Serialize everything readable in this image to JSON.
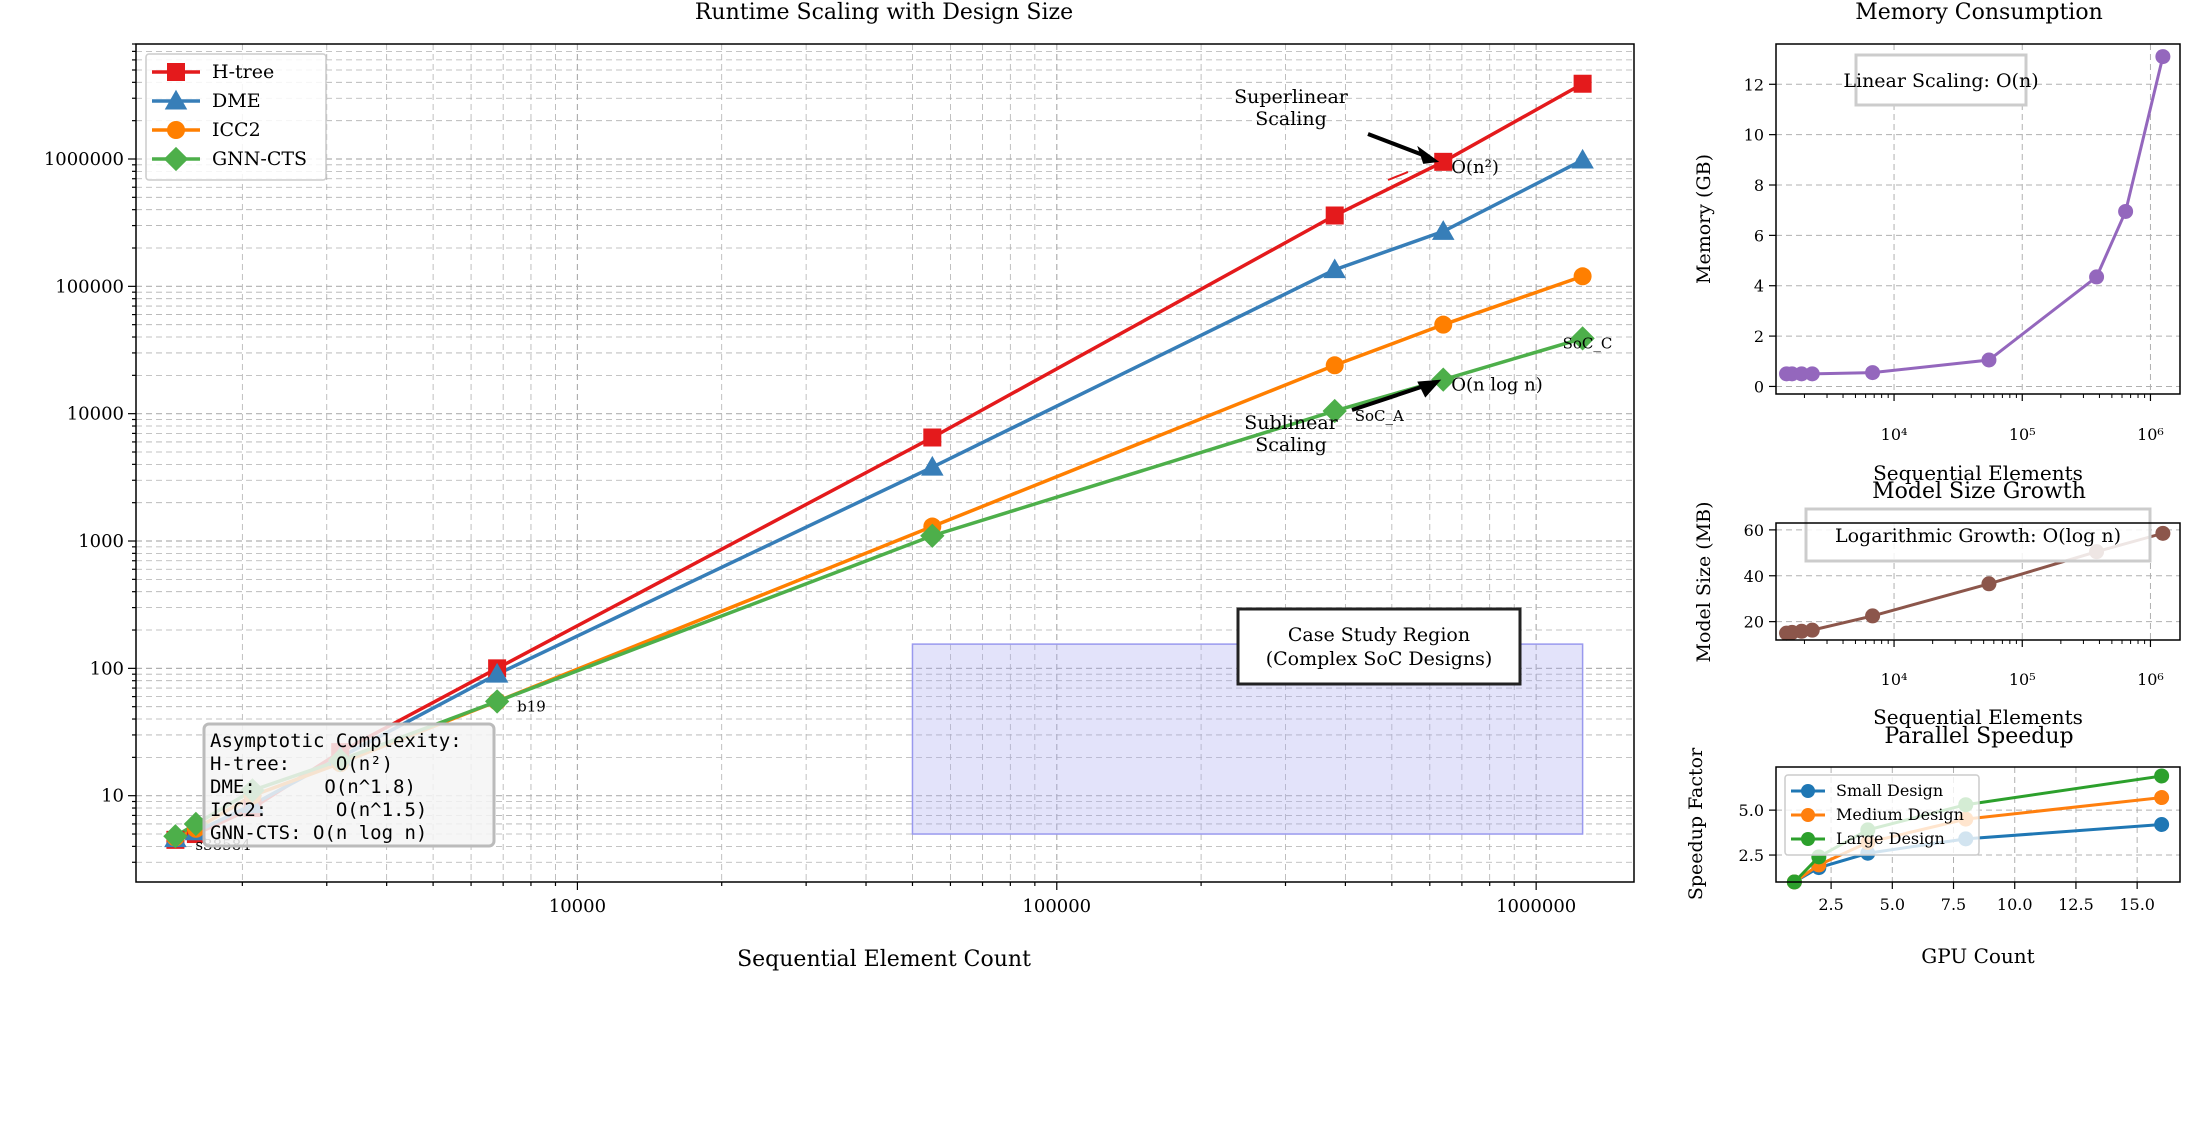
{
  "chart_data": [
    {
      "type": "line",
      "title": "Runtime Scaling with Design Size",
      "xlabel": "Sequential Element Count",
      "ylabel": "",
      "xscale": "log",
      "yscale": "log",
      "xlim": [
        1200,
        1600000
      ],
      "ylim": [
        2.1,
        8000000
      ],
      "grid": true,
      "legend_position": "top-left",
      "x_tick_labels": [
        "10000",
        "100000",
        "1000000"
      ],
      "y_tick_labels": [
        "10",
        "100",
        "1000",
        "10000",
        "100000",
        "1000000"
      ],
      "series": [
        {
          "name": "H-tree",
          "color": "#e41a1c",
          "marker": "square",
          "x": [
            1450,
            1600,
            2100,
            3200,
            6800,
            55000,
            380000,
            640000,
            1250000
          ],
          "y": [
            4.5,
            5,
            8,
            22,
            100,
            6500,
            360000,
            950000,
            3900000
          ]
        },
        {
          "name": "DME",
          "color": "#377eb8",
          "marker": "triangle",
          "x": [
            1450,
            1600,
            2100,
            3200,
            6800,
            55000,
            380000,
            640000,
            1250000
          ],
          "y": [
            4.6,
            5.2,
            8.5,
            20,
            90,
            3800,
            135000,
            270000,
            980000
          ]
        },
        {
          "name": "ICC2",
          "color": "#ff7f00",
          "marker": "circle",
          "x": [
            1450,
            1600,
            2100,
            3200,
            6800,
            55000,
            380000,
            640000,
            1250000
          ],
          "y": [
            4.7,
            5.5,
            10,
            18,
            55,
            1300,
            24000,
            50000,
            120000
          ]
        },
        {
          "name": "GNN-CTS",
          "color": "#4daf4a",
          "marker": "diamond",
          "x": [
            1450,
            1600,
            2100,
            3200,
            6800,
            55000,
            380000,
            640000,
            1250000
          ],
          "y": [
            4.8,
            6,
            11,
            19,
            55,
            1100,
            10500,
            18500,
            39000
          ]
        }
      ],
      "point_labels": [
        {
          "text": "s38584",
          "x": 1450,
          "y": 4.5
        },
        {
          "text": "b19",
          "x": 6800,
          "y": 55
        },
        {
          "text": "SoC_A",
          "x": 380000,
          "y": 10500
        },
        {
          "text": "SoC_C",
          "x": 1250000,
          "y": 39000
        }
      ],
      "annotations": {
        "superlinear": {
          "text_lines": [
            "Superlinear",
            "Scaling"
          ],
          "target_x": 640000,
          "target_y": 950000,
          "label": "O(n²)",
          "color": "#e41a1c"
        },
        "sublinear": {
          "text_lines": [
            "Sublinear",
            "Scaling"
          ],
          "target_x": 640000,
          "target_y": 18500,
          "label": "O(n log n)",
          "color": "#4daf4a"
        },
        "case_study": {
          "text_lines": [
            "Case Study Region",
            "(Complex SoC Designs)"
          ],
          "x_range": [
            50000,
            1250000
          ],
          "y_range": [
            5,
            155
          ],
          "color": "#b0b0f0"
        },
        "complexity_box": {
          "lines": [
            "Asymptotic Complexity:",
            "H-tree:    O(n²)",
            "DME:      O(n^1.8)",
            "ICC2:      O(n^1.5)",
            "GNN-CTS: O(n log n)"
          ]
        }
      }
    },
    {
      "type": "line",
      "title": "Memory Consumption",
      "xlabel": "Sequential Elements",
      "ylabel": "Memory (GB)",
      "xscale": "log",
      "xlim": [
        1200,
        1700000
      ],
      "ylim": [
        -0.3,
        13.6
      ],
      "y_ticks": [
        0,
        2,
        4,
        6,
        8,
        10,
        12
      ],
      "x_tick_labels": [
        "10⁴",
        "10⁵",
        "10⁶"
      ],
      "grid": true,
      "annotation": "Linear Scaling: O(n)",
      "series": [
        {
          "name": "",
          "color": "#9467bd",
          "x": [
            1450,
            1600,
            1900,
            2300,
            6800,
            55000,
            380000,
            640000,
            1250000
          ],
          "y": [
            0.5,
            0.5,
            0.5,
            0.5,
            0.55,
            1.05,
            4.35,
            6.95,
            13.1
          ]
        }
      ]
    },
    {
      "type": "line",
      "title": "Model Size Growth",
      "xlabel": "Sequential Elements",
      "ylabel": "Model Size (MB)",
      "xscale": "log",
      "xlim": [
        1200,
        1700000
      ],
      "ylim": [
        12,
        63
      ],
      "y_ticks": [
        20,
        40,
        60
      ],
      "x_tick_labels": [
        "10⁴",
        "10⁵",
        "10⁶"
      ],
      "grid": true,
      "annotation": "Logarithmic Growth: O(log n)",
      "series": [
        {
          "name": "",
          "color": "#8c564b",
          "x": [
            1450,
            1600,
            1900,
            2300,
            6800,
            55000,
            380000,
            1250000
          ],
          "y": [
            15,
            15.3,
            15.8,
            16.3,
            22.5,
            36.5,
            50.5,
            58.5
          ]
        }
      ]
    },
    {
      "type": "line",
      "title": "Parallel Speedup",
      "xlabel": "GPU Count",
      "ylabel": "Speedup Factor",
      "xlim": [
        0.25,
        16.75
      ],
      "ylim": [
        1.0,
        7.4
      ],
      "x_ticks": [
        2.5,
        5.0,
        7.5,
        10.0,
        12.5,
        15.0
      ],
      "y_ticks": [
        2.5,
        5.0
      ],
      "grid": true,
      "legend_position": "top-left",
      "series": [
        {
          "name": "Small Design",
          "color": "#1f77b4",
          "x": [
            1,
            2,
            4,
            8,
            16
          ],
          "y": [
            1.0,
            1.8,
            2.6,
            3.4,
            4.2
          ]
        },
        {
          "name": "Medium Design",
          "color": "#ff7f0e",
          "x": [
            1,
            2,
            4,
            8,
            16
          ],
          "y": [
            1.0,
            1.95,
            3.2,
            4.5,
            5.7
          ]
        },
        {
          "name": "Large Design",
          "color": "#2ca02c",
          "x": [
            1,
            2,
            4,
            8,
            16
          ],
          "y": [
            1.0,
            2.4,
            3.9,
            5.3,
            6.9
          ]
        }
      ]
    }
  ]
}
